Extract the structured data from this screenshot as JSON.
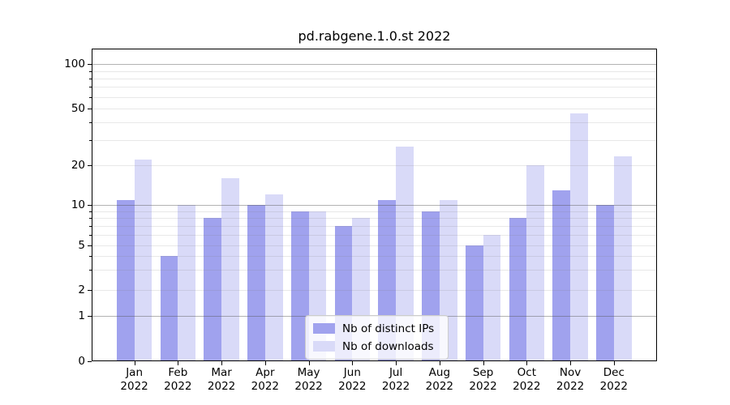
{
  "chart": {
    "title": "pd.rabgene.1.0.st 2022"
  },
  "legend": {
    "items": [
      {
        "label": "Nb of distinct IPs",
        "color": "#a0a2ee"
      },
      {
        "label": "Nb of downloads",
        "color": "#d9daf8"
      }
    ],
    "position": "lower center"
  },
  "chart_data": {
    "type": "bar",
    "title": "pd.rabgene.1.0.st 2022",
    "categories": [
      "Jan 2022",
      "Feb 2022",
      "Mar 2022",
      "Apr 2022",
      "May 2022",
      "Jun 2022",
      "Jul 2022",
      "Aug 2022",
      "Sep 2022",
      "Oct 2022",
      "Nov 2022",
      "Dec 2022"
    ],
    "series": [
      {
        "name": "Nb of distinct IPs",
        "color": "#a0a2ee",
        "values": [
          11,
          4,
          8,
          10,
          9,
          7,
          11,
          9,
          5,
          8,
          13,
          10
        ]
      },
      {
        "name": "Nb of downloads",
        "color": "#d9daf8",
        "values": [
          22,
          10,
          16,
          12,
          9,
          8,
          27,
          11,
          6,
          20,
          46,
          23
        ]
      }
    ],
    "xlabel": "",
    "ylabel": "",
    "yscale": "log-like (asinh, linear below 1)",
    "ylim": [
      0,
      128
    ],
    "ytick_labels": [
      0,
      1,
      2,
      5,
      10,
      20,
      50,
      100
    ],
    "major_grid_values": [
      1,
      10,
      100
    ],
    "minor_grid_values": [
      2,
      3,
      4,
      5,
      6,
      7,
      8,
      9,
      20,
      30,
      40,
      50,
      60,
      70,
      80,
      90
    ],
    "grid": "both",
    "grid_major_color": "#b0b0b0",
    "grid_minor_color": "#e7e7e7",
    "legend_position": "lower center"
  }
}
